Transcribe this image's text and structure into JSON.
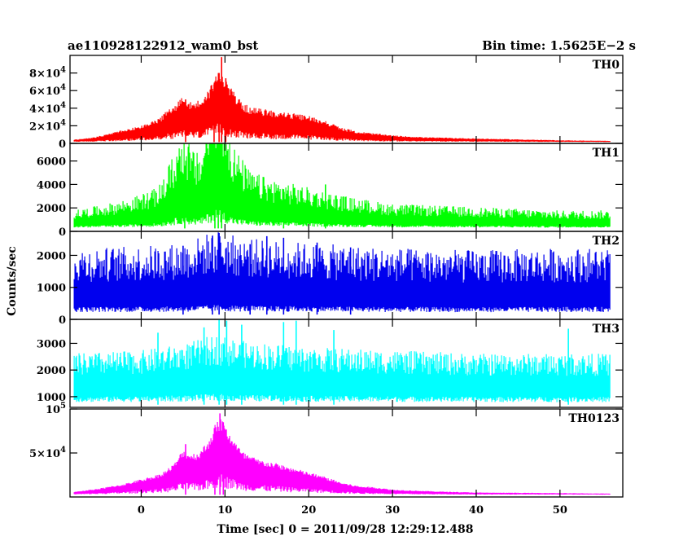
{
  "chart_data": {
    "type": "line",
    "title": "ae110928122912_wam0_bst",
    "bin_time_text": "Bin time: 1.5625E−2 s",
    "xlabel": "Time [sec] 0 = 2011/09/28 12:29:12.488",
    "ylabel": "Counts/sec",
    "xlim": [
      -8.5,
      57.5
    ],
    "data_xrange": [
      -8,
      56
    ],
    "x_ticks": [
      0,
      10,
      20,
      30,
      40,
      50
    ],
    "x_tick_labels": [
      "0",
      "10",
      "20",
      "30",
      "40",
      "50"
    ],
    "grid": false,
    "panels": [
      {
        "name": "TH0",
        "color": "#ff0000",
        "ylim": [
          0,
          100000
        ],
        "y_ticks": [
          0,
          20000,
          40000,
          60000,
          80000
        ],
        "y_tick_labels": [
          {
            "base": "0",
            "exp": ""
          },
          {
            "base": "2×10",
            "exp": "4"
          },
          {
            "base": "4×10",
            "exp": "4"
          },
          {
            "base": "6×10",
            "exp": "4"
          },
          {
            "base": "8×10",
            "exp": "4"
          }
        ],
        "baseline": 1500,
        "noise": 0.1,
        "profile": [
          [
            -8,
            3500
          ],
          [
            -6,
            5000
          ],
          [
            -4,
            8000
          ],
          [
            -2,
            12000
          ],
          [
            0,
            15000
          ],
          [
            2,
            20000
          ],
          [
            3,
            27000
          ],
          [
            4,
            32000
          ],
          [
            5,
            40000
          ],
          [
            6,
            34000
          ],
          [
            7,
            36000
          ],
          [
            8,
            44000
          ],
          [
            9,
            58000
          ],
          [
            9.5,
            62000
          ],
          [
            10,
            52000
          ],
          [
            11,
            44000
          ],
          [
            12,
            34000
          ],
          [
            13,
            30000
          ],
          [
            15,
            28000
          ],
          [
            17,
            26000
          ],
          [
            20,
            23000
          ],
          [
            22,
            19000
          ],
          [
            24,
            13000
          ],
          [
            26,
            10000
          ],
          [
            28,
            8500
          ],
          [
            30,
            7000
          ],
          [
            34,
            5500
          ],
          [
            40,
            4500
          ],
          [
            50,
            3000
          ],
          [
            56,
            2500
          ]
        ],
        "spikes": [
          [
            9.6,
            98000
          ],
          [
            9.3,
            80000
          ],
          [
            10.1,
            74000
          ],
          [
            5.3,
            50000
          ],
          [
            8.7,
            67000
          ]
        ]
      },
      {
        "name": "TH1",
        "color": "#00ff00",
        "ylim": [
          0,
          7500
        ],
        "y_ticks": [
          0,
          2000,
          4000,
          6000
        ],
        "y_tick_labels": [
          {
            "base": "0",
            "exp": ""
          },
          {
            "base": "2000",
            "exp": ""
          },
          {
            "base": "4000",
            "exp": ""
          },
          {
            "base": "6000",
            "exp": ""
          }
        ],
        "baseline": 250,
        "noise": 0.45,
        "profile": [
          [
            -8,
            800
          ],
          [
            -4,
            1000
          ],
          [
            -1,
            1200
          ],
          [
            2,
            1500
          ],
          [
            3,
            2000
          ],
          [
            4,
            2600
          ],
          [
            5,
            3300
          ],
          [
            6,
            2700
          ],
          [
            7,
            2500
          ],
          [
            8,
            3800
          ],
          [
            9,
            5000
          ],
          [
            10,
            4000
          ],
          [
            11,
            2800
          ],
          [
            13,
            2000
          ],
          [
            15,
            1800
          ],
          [
            20,
            1500
          ],
          [
            25,
            1200
          ],
          [
            30,
            1000
          ],
          [
            40,
            900
          ],
          [
            50,
            800
          ],
          [
            56,
            800
          ]
        ],
        "spikes": [
          [
            9.2,
            7500
          ],
          [
            8.8,
            6800
          ],
          [
            5.2,
            5600
          ],
          [
            9.6,
            6300
          ],
          [
            22,
            4000
          ],
          [
            17,
            3600
          ]
        ]
      },
      {
        "name": "TH2",
        "color": "#0000ee",
        "ylim": [
          0,
          2750
        ],
        "y_ticks": [
          0,
          1000,
          2000
        ],
        "y_tick_labels": [
          {
            "base": "0",
            "exp": ""
          },
          {
            "base": "1000",
            "exp": ""
          },
          {
            "base": "2000",
            "exp": ""
          }
        ],
        "baseline": 150,
        "noise": 0.55,
        "profile": [
          [
            -8,
            800
          ],
          [
            0,
            820
          ],
          [
            5,
            850
          ],
          [
            9,
            980
          ],
          [
            12,
            900
          ],
          [
            20,
            850
          ],
          [
            30,
            800
          ],
          [
            40,
            780
          ],
          [
            50,
            800
          ],
          [
            56,
            800
          ]
        ],
        "spikes": [
          [
            9.3,
            2700
          ],
          [
            8.5,
            2600
          ],
          [
            15,
            2600
          ],
          [
            17,
            2550
          ],
          [
            21,
            2400
          ],
          [
            25,
            2250
          ],
          [
            5,
            2300
          ],
          [
            13,
            2350
          ]
        ]
      },
      {
        "name": "TH3",
        "color": "#00ffff",
        "ylim": [
          600,
          3900
        ],
        "y_ticks": [
          1000,
          2000,
          3000
        ],
        "y_tick_labels": [
          {
            "base": "1000",
            "exp": ""
          },
          {
            "base": "2000",
            "exp": ""
          },
          {
            "base": "3000",
            "exp": ""
          }
        ],
        "baseline": 700,
        "noise": 0.35,
        "profile": [
          [
            -8,
            1500
          ],
          [
            0,
            1550
          ],
          [
            5,
            1650
          ],
          [
            9,
            1800
          ],
          [
            12,
            1700
          ],
          [
            20,
            1600
          ],
          [
            30,
            1550
          ],
          [
            40,
            1500
          ],
          [
            50,
            1500
          ],
          [
            56,
            1500
          ]
        ],
        "spikes": [
          [
            9.3,
            3900
          ],
          [
            10.2,
            3850
          ],
          [
            12,
            3700
          ],
          [
            17,
            3800
          ],
          [
            18.5,
            3850
          ],
          [
            7.5,
            3600
          ],
          [
            23,
            3500
          ],
          [
            2,
            3400
          ],
          [
            51,
            3550
          ]
        ]
      },
      {
        "name": "TH0123",
        "color": "#ff00ff",
        "ylim": [
          0,
          100000
        ],
        "y_ticks": [
          50000,
          100000
        ],
        "y_tick_labels": [
          {
            "base": "5×10",
            "exp": "4"
          },
          {
            "base": "10",
            "exp": "5"
          }
        ],
        "baseline": 2500,
        "noise": 0.08,
        "profile": [
          [
            -8,
            5000
          ],
          [
            -5,
            8000
          ],
          [
            -2,
            12000
          ],
          [
            0,
            16000
          ],
          [
            2,
            20000
          ],
          [
            3,
            24000
          ],
          [
            4,
            30000
          ],
          [
            5,
            42000
          ],
          [
            6,
            38000
          ],
          [
            7,
            40000
          ],
          [
            8,
            50000
          ],
          [
            9,
            66000
          ],
          [
            9.5,
            70000
          ],
          [
            10,
            62000
          ],
          [
            11,
            52000
          ],
          [
            12,
            40000
          ],
          [
            14,
            33000
          ],
          [
            16,
            30000
          ],
          [
            18,
            26000
          ],
          [
            20,
            22000
          ],
          [
            22,
            18000
          ],
          [
            24,
            13000
          ],
          [
            26,
            10000
          ],
          [
            28,
            9000
          ],
          [
            30,
            7000
          ],
          [
            35,
            5500
          ],
          [
            40,
            4500
          ],
          [
            50,
            4000
          ],
          [
            56,
            3500
          ]
        ],
        "spikes": [
          [
            9.4,
            95000
          ],
          [
            9.8,
            85000
          ],
          [
            5.3,
            60000
          ],
          [
            8.8,
            78000
          ]
        ]
      }
    ]
  }
}
